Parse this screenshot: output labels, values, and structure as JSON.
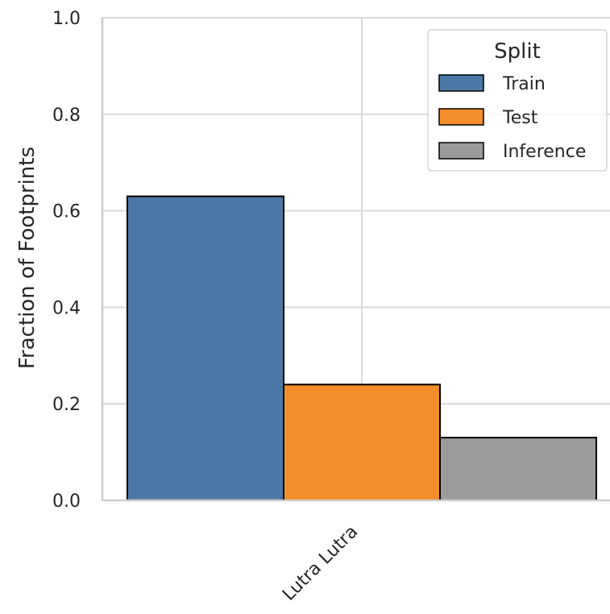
{
  "chart_data": {
    "type": "bar",
    "categories": [
      "Lutra Lutra"
    ],
    "series": [
      {
        "name": "Train",
        "values": [
          0.63
        ],
        "color": "#4c78a8"
      },
      {
        "name": "Test",
        "values": [
          0.24
        ],
        "color": "#f28e2b"
      },
      {
        "name": "Inference",
        "values": [
          0.13
        ],
        "color": "#9b9b9b"
      }
    ],
    "ylabel": "Fraction of Footprints",
    "xlabel": "",
    "ylim": [
      0,
      1.0
    ],
    "yticks": [
      0.0,
      0.2,
      0.4,
      0.6,
      0.8,
      1.0
    ],
    "ytick_labels": [
      "0.0",
      "0.2",
      "0.4",
      "0.6",
      "0.8",
      "1.0"
    ],
    "grid": true,
    "legend": {
      "title": "Split",
      "placement": "top-right",
      "entries": [
        "Train",
        "Test",
        "Inference"
      ]
    }
  }
}
